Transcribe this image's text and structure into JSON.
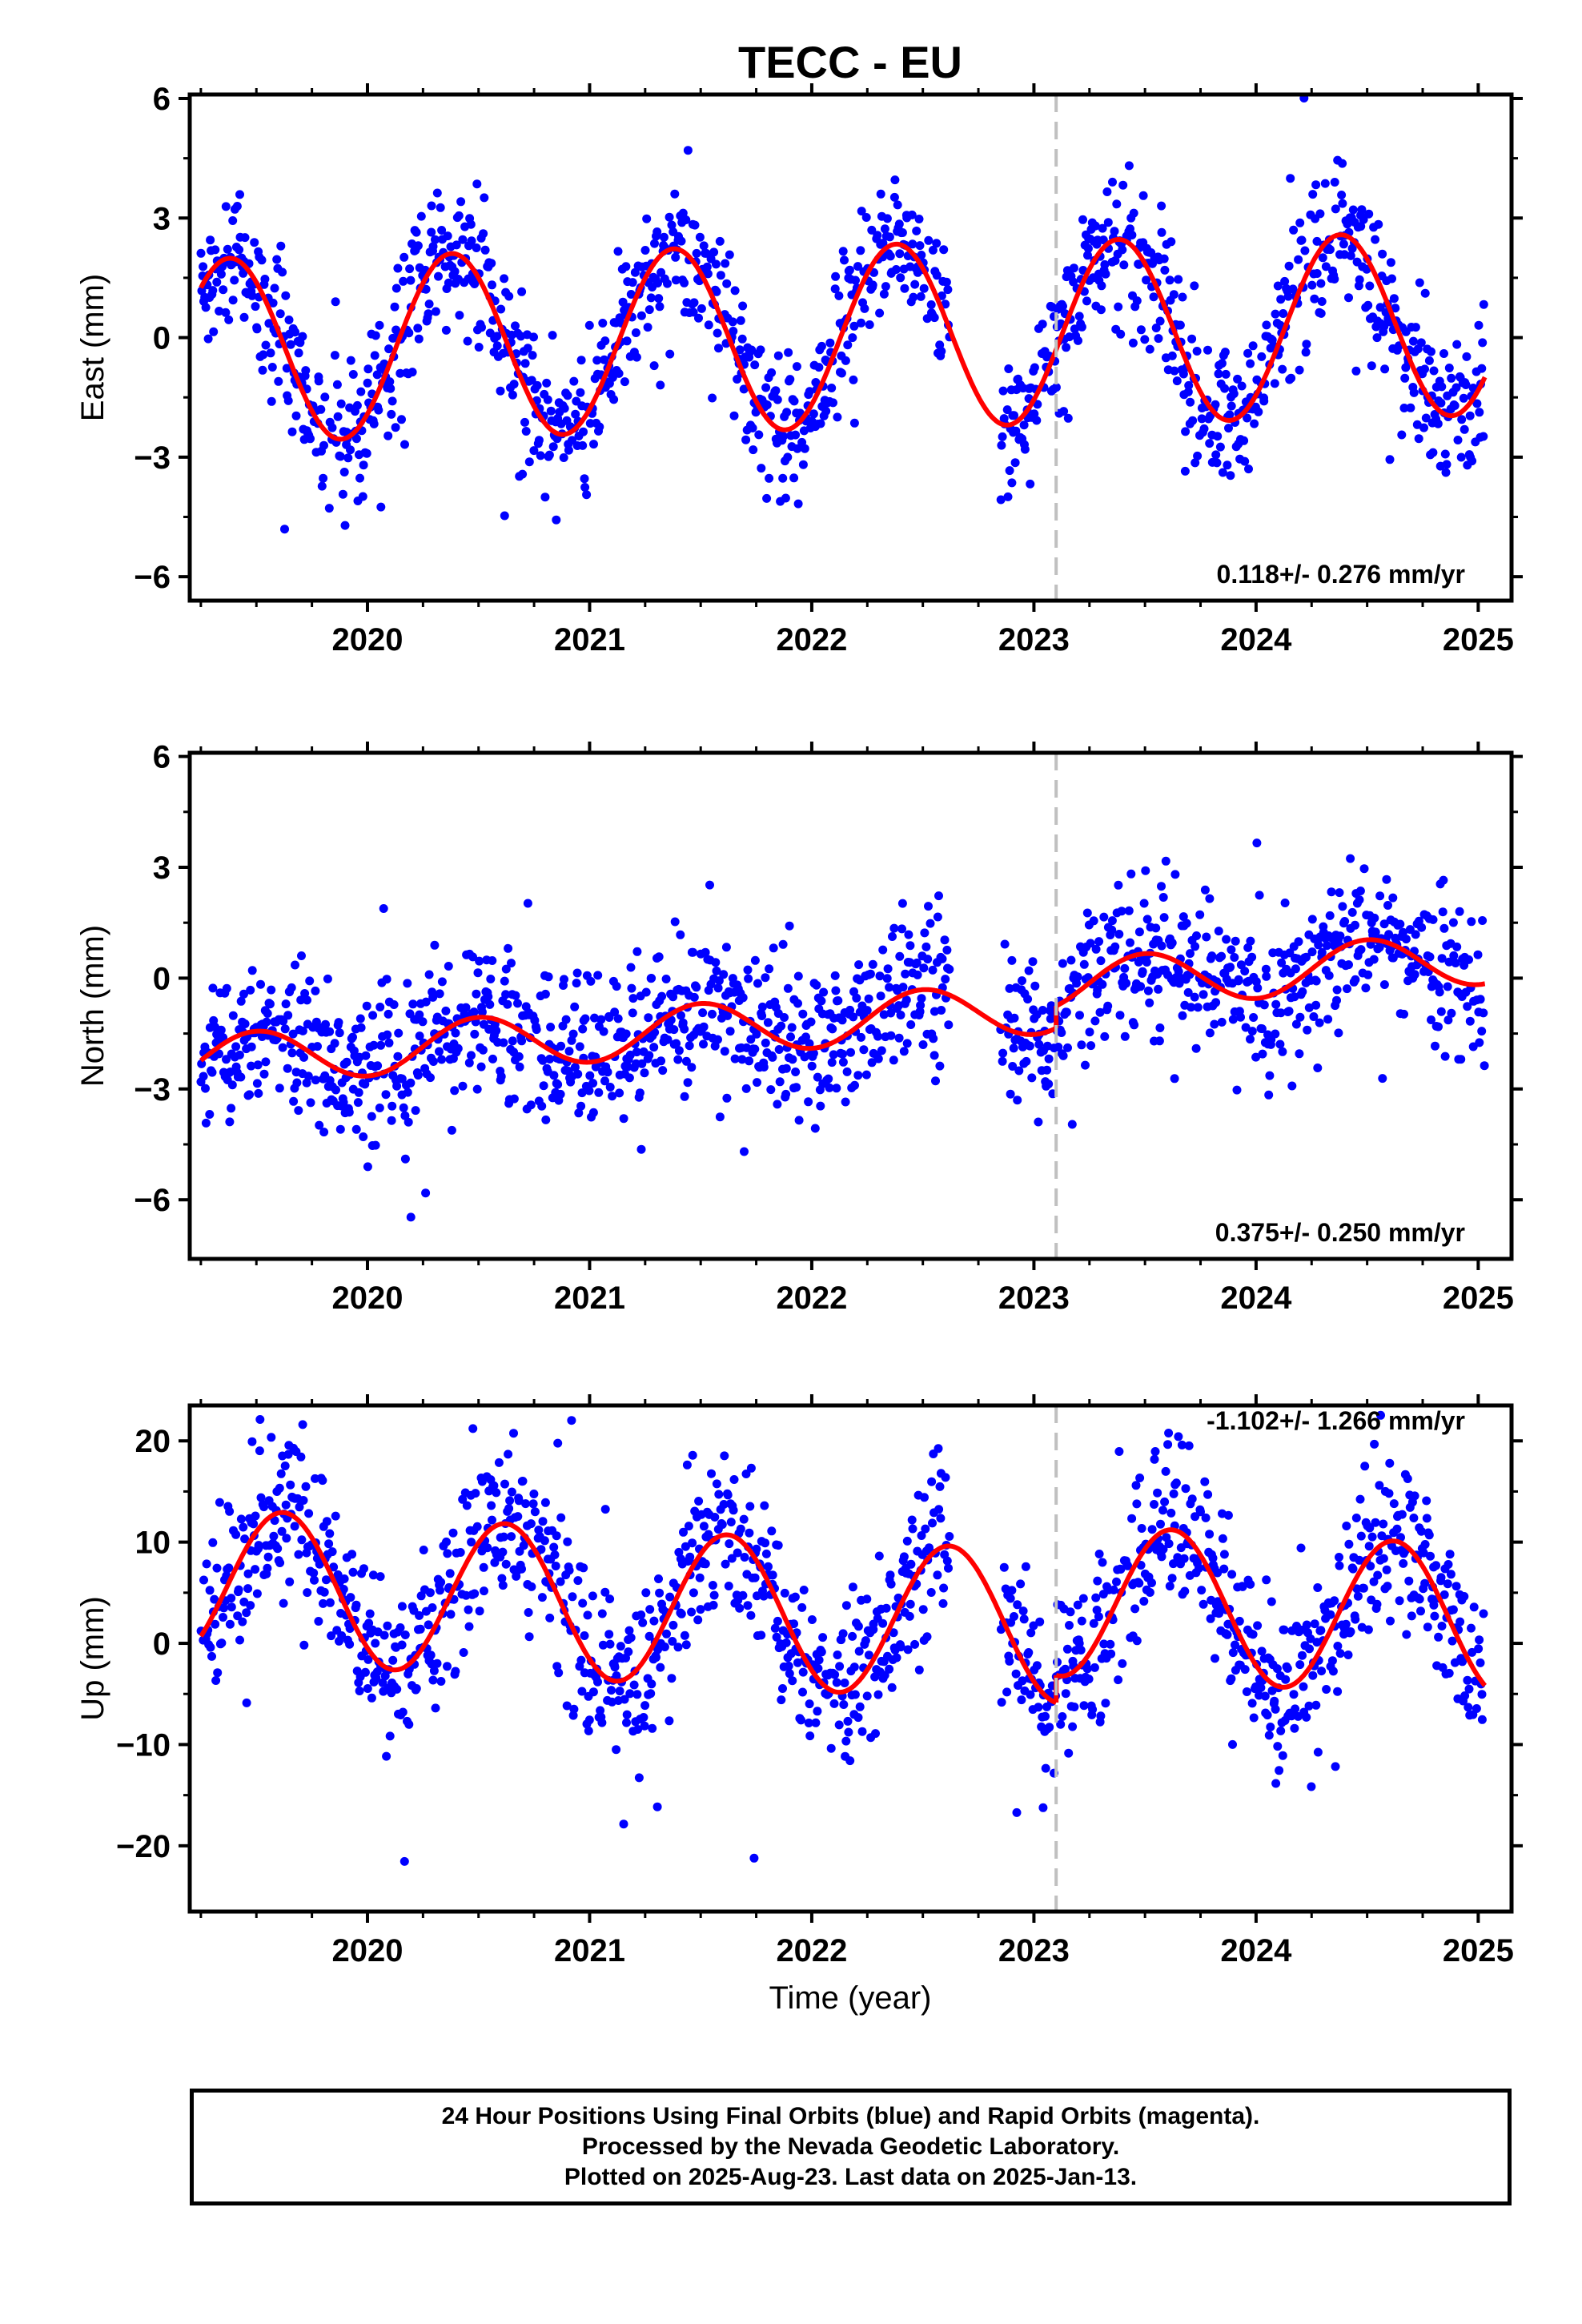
{
  "figure": {
    "title": "TECC - EU",
    "x_axis_label": "Time (year)",
    "footer": [
      "24 Hour Positions Using Final Orbits (blue) and Rapid Orbits (magenta).",
      "Processed by the Nevada Geodetic Laboratory.",
      "Plotted on 2025-Aug-23. Last data on 2025-Jan-13."
    ],
    "colors": {
      "points": "#0000ff",
      "model": "#ff0000",
      "event_line": "#c0c0c0",
      "frame": "#000000"
    }
  },
  "chart_data": [
    {
      "type": "scatter",
      "panel": "east",
      "ylabel": "East (mm)",
      "xlim": [
        2019.2,
        2025.15
      ],
      "ylim": [
        -6.6,
        6.1
      ],
      "yticks": [
        -6,
        -3,
        0,
        3,
        6
      ],
      "ytick_labels": [
        "−6",
        "−3",
        "0",
        "3",
        "6"
      ],
      "xticks": [
        2020,
        2021,
        2022,
        2023,
        2024,
        2025
      ],
      "xtick_labels": [
        "2020",
        "2021",
        "2022",
        "2023",
        "2024",
        "2025"
      ],
      "rate_label": "0.118+/- 0.276 mm/yr",
      "event_year": 2023.1,
      "data_start": 2019.25,
      "data_end": 2025.03,
      "gap": [
        2022.62,
        2022.85
      ],
      "series": [
        {
          "kind": "seasonal_fit",
          "annual_amplitude": 2.3,
          "annual_peak": 2019.38,
          "trend": 0.118,
          "offset": 0.0,
          "segments": [
            {
              "start": 2019.25,
              "end": 2023.1,
              "offset": 0.0
            },
            {
              "start": 2023.1,
              "end": 2025.03,
              "offset": 0.0
            }
          ]
        },
        {
          "kind": "daily_scatter",
          "scatter_sd": 0.9,
          "points_per_year": 280
        }
      ]
    },
    {
      "type": "scatter",
      "panel": "north",
      "ylabel": "North (mm)",
      "xlim": [
        2019.2,
        2025.15
      ],
      "ylim": [
        -7.6,
        6.1
      ],
      "yticks": [
        -6,
        -3,
        0,
        3,
        6
      ],
      "ytick_labels": [
        "−6",
        "−3",
        "0",
        "3",
        "6"
      ],
      "xticks": [
        2020,
        2021,
        2022,
        2023,
        2024,
        2025
      ],
      "xtick_labels": [
        "2020",
        "2021",
        "2022",
        "2023",
        "2024",
        "2025"
      ],
      "rate_label": "0.375+/- 0.250 mm/yr",
      "event_year": 2023.1,
      "data_start": 2019.25,
      "data_end": 2025.03,
      "gap": [
        2022.62,
        2022.85
      ],
      "series": [
        {
          "kind": "seasonal_fit",
          "annual_amplitude": 0.7,
          "annual_peak": 2019.5,
          "trend": 0.375,
          "offset": -1.2,
          "segments": [
            {
              "start": 2019.25,
              "end": 2023.1,
              "offset": -1.2
            },
            {
              "start": 2023.1,
              "end": 2025.03,
              "offset": -0.6
            }
          ]
        },
        {
          "kind": "daily_scatter",
          "scatter_sd": 1.0,
          "points_per_year": 280
        }
      ]
    },
    {
      "type": "scatter",
      "panel": "up",
      "ylabel": "Up (mm)",
      "xlim": [
        2019.2,
        2025.15
      ],
      "ylim": [
        -26.5,
        23.5
      ],
      "yticks": [
        -20,
        -10,
        0,
        10,
        20
      ],
      "ytick_labels": [
        "−20",
        "−10",
        "0",
        "10",
        "20"
      ],
      "xticks": [
        2020,
        2021,
        2022,
        2023,
        2024,
        2025
      ],
      "xtick_labels": [
        "2020",
        "2021",
        "2022",
        "2023",
        "2024",
        "2025"
      ],
      "rate_label": "-1.102+/- 1.266 mm/yr",
      "event_year": 2023.1,
      "data_start": 2019.25,
      "data_end": 2025.03,
      "gap": [
        2022.62,
        2022.85
      ],
      "series": [
        {
          "kind": "seasonal_fit",
          "annual_amplitude": 7.5,
          "annual_peak": 2019.62,
          "trend": -1.102,
          "offset": 2.8,
          "segments": [
            {
              "start": 2019.25,
              "end": 2023.1,
              "offset": 2.8
            },
            {
              "start": 2023.1,
              "end": 2025.03,
              "offset": 5.5
            }
          ]
        },
        {
          "kind": "daily_scatter",
          "scatter_sd": 4.0,
          "points_per_year": 280
        }
      ]
    }
  ]
}
